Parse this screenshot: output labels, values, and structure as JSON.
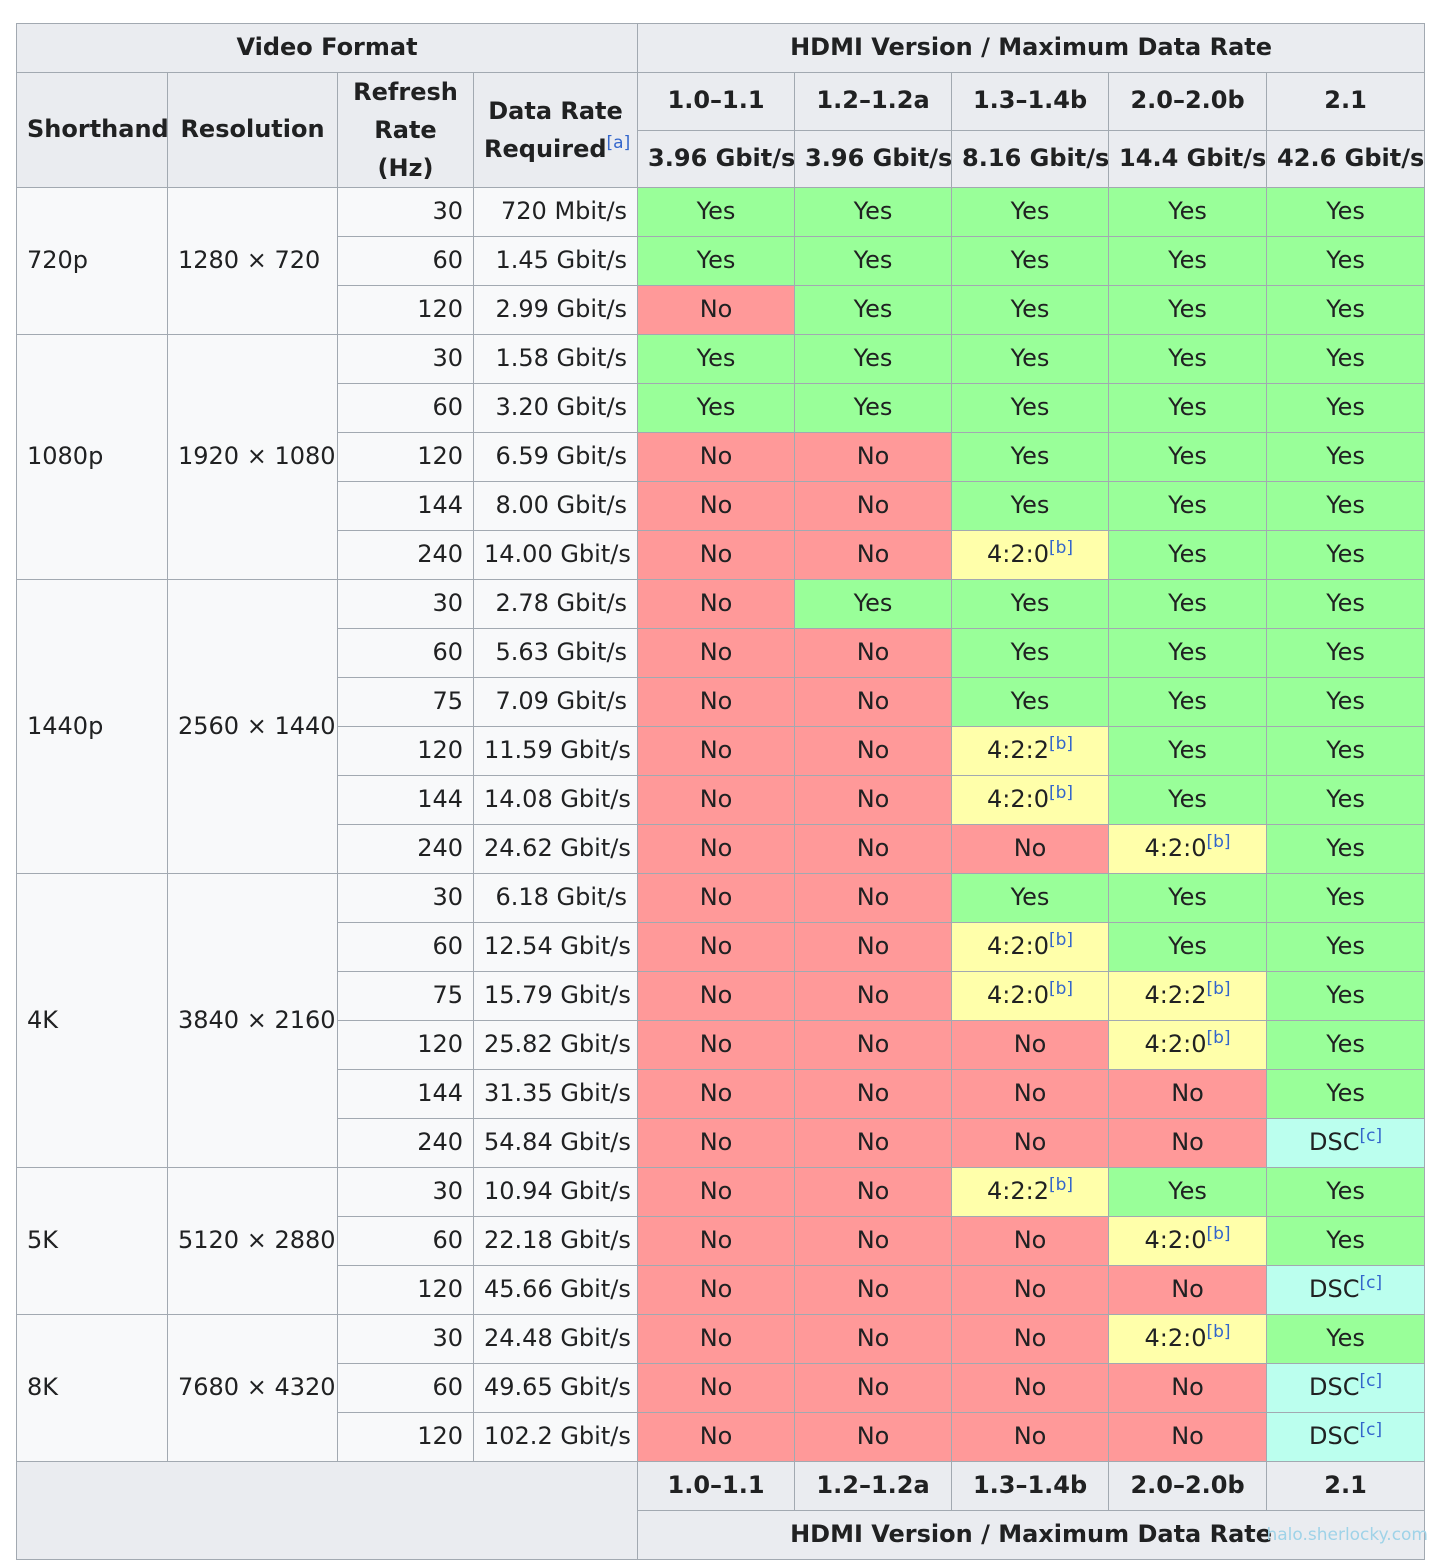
{
  "header": {
    "video_format": "Video Format",
    "hdmi_group": "HDMI Version / Maximum Data Rate",
    "shorthand": "Shorthand",
    "resolution": "Resolution",
    "refresh_rate": "Refresh Rate (Hz)",
    "data_rate": "Data Rate Required",
    "data_rate_note": "[a]"
  },
  "versions": [
    {
      "name": "1.0–1.1",
      "rate": "3.96 Gbit/s"
    },
    {
      "name": "1.2–1.2a",
      "rate": "3.96 Gbit/s"
    },
    {
      "name": "1.3–1.4b",
      "rate": "8.16 Gbit/s"
    },
    {
      "name": "2.0–2.0b",
      "rate": "14.4 Gbit/s"
    },
    {
      "name": "2.1",
      "rate": "42.6 Gbit/s"
    }
  ],
  "legend": {
    "yes": "Yes",
    "no": "No",
    "note_b": "[b]",
    "note_c": "[c]",
    "colors": {
      "yes": "#99ff99",
      "no": "#ff9999",
      "partial": "#ffffaa",
      "dsc": "#bbffee"
    }
  },
  "groups": [
    {
      "shorthand": "720p",
      "resolution": "1280 × 720",
      "rows": [
        {
          "hz": "30",
          "rate": "720 Mbit/s",
          "support": [
            "Yes",
            "Yes",
            "Yes",
            "Yes",
            "Yes"
          ]
        },
        {
          "hz": "60",
          "rate": "1.45 Gbit/s",
          "support": [
            "Yes",
            "Yes",
            "Yes",
            "Yes",
            "Yes"
          ]
        },
        {
          "hz": "120",
          "rate": "2.99 Gbit/s",
          "support": [
            "No",
            "Yes",
            "Yes",
            "Yes",
            "Yes"
          ]
        }
      ]
    },
    {
      "shorthand": "1080p",
      "resolution": "1920 × 1080",
      "rows": [
        {
          "hz": "30",
          "rate": "1.58 Gbit/s",
          "support": [
            "Yes",
            "Yes",
            "Yes",
            "Yes",
            "Yes"
          ]
        },
        {
          "hz": "60",
          "rate": "3.20 Gbit/s",
          "support": [
            "Yes",
            "Yes",
            "Yes",
            "Yes",
            "Yes"
          ]
        },
        {
          "hz": "120",
          "rate": "6.59 Gbit/s",
          "support": [
            "No",
            "No",
            "Yes",
            "Yes",
            "Yes"
          ]
        },
        {
          "hz": "144",
          "rate": "8.00 Gbit/s",
          "support": [
            "No",
            "No",
            "Yes",
            "Yes",
            "Yes"
          ]
        },
        {
          "hz": "240",
          "rate": "14.00 Gbit/s",
          "support": [
            "No",
            "No",
            "4:2:0",
            "Yes",
            "Yes"
          ]
        }
      ]
    },
    {
      "shorthand": "1440p",
      "resolution": "2560 × 1440",
      "rows": [
        {
          "hz": "30",
          "rate": "2.78 Gbit/s",
          "support": [
            "No",
            "Yes",
            "Yes",
            "Yes",
            "Yes"
          ]
        },
        {
          "hz": "60",
          "rate": "5.63 Gbit/s",
          "support": [
            "No",
            "No",
            "Yes",
            "Yes",
            "Yes"
          ]
        },
        {
          "hz": "75",
          "rate": "7.09 Gbit/s",
          "support": [
            "No",
            "No",
            "Yes",
            "Yes",
            "Yes"
          ]
        },
        {
          "hz": "120",
          "rate": "11.59 Gbit/s",
          "support": [
            "No",
            "No",
            "4:2:2",
            "Yes",
            "Yes"
          ]
        },
        {
          "hz": "144",
          "rate": "14.08 Gbit/s",
          "support": [
            "No",
            "No",
            "4:2:0",
            "Yes",
            "Yes"
          ]
        },
        {
          "hz": "240",
          "rate": "24.62 Gbit/s",
          "support": [
            "No",
            "No",
            "No",
            "4:2:0",
            "Yes"
          ]
        }
      ]
    },
    {
      "shorthand": "4K",
      "resolution": "3840 × 2160",
      "rows": [
        {
          "hz": "30",
          "rate": "6.18 Gbit/s",
          "support": [
            "No",
            "No",
            "Yes",
            "Yes",
            "Yes"
          ]
        },
        {
          "hz": "60",
          "rate": "12.54 Gbit/s",
          "support": [
            "No",
            "No",
            "4:2:0",
            "Yes",
            "Yes"
          ]
        },
        {
          "hz": "75",
          "rate": "15.79 Gbit/s",
          "support": [
            "No",
            "No",
            "4:2:0",
            "4:2:2",
            "Yes"
          ]
        },
        {
          "hz": "120",
          "rate": "25.82 Gbit/s",
          "support": [
            "No",
            "No",
            "No",
            "4:2:0",
            "Yes"
          ]
        },
        {
          "hz": "144",
          "rate": "31.35 Gbit/s",
          "support": [
            "No",
            "No",
            "No",
            "No",
            "Yes"
          ]
        },
        {
          "hz": "240",
          "rate": "54.84 Gbit/s",
          "support": [
            "No",
            "No",
            "No",
            "No",
            "DSC"
          ]
        }
      ]
    },
    {
      "shorthand": "5K",
      "resolution": "5120 × 2880",
      "rows": [
        {
          "hz": "30",
          "rate": "10.94 Gbit/s",
          "support": [
            "No",
            "No",
            "4:2:2",
            "Yes",
            "Yes"
          ]
        },
        {
          "hz": "60",
          "rate": "22.18 Gbit/s",
          "support": [
            "No",
            "No",
            "No",
            "4:2:0",
            "Yes"
          ]
        },
        {
          "hz": "120",
          "rate": "45.66 Gbit/s",
          "support": [
            "No",
            "No",
            "No",
            "No",
            "DSC"
          ]
        }
      ]
    },
    {
      "shorthand": "8K",
      "resolution": "7680 × 4320",
      "rows": [
        {
          "hz": "30",
          "rate": "24.48 Gbit/s",
          "support": [
            "No",
            "No",
            "No",
            "4:2:0",
            "Yes"
          ]
        },
        {
          "hz": "60",
          "rate": "49.65 Gbit/s",
          "support": [
            "No",
            "No",
            "No",
            "No",
            "DSC"
          ]
        },
        {
          "hz": "120",
          "rate": "102.2 Gbit/s",
          "support": [
            "No",
            "No",
            "No",
            "No",
            "DSC"
          ]
        }
      ]
    }
  ],
  "footer": {
    "caption": "HDMI Version / Maximum Data Rate"
  },
  "watermark": "halo.sherlocky.com"
}
